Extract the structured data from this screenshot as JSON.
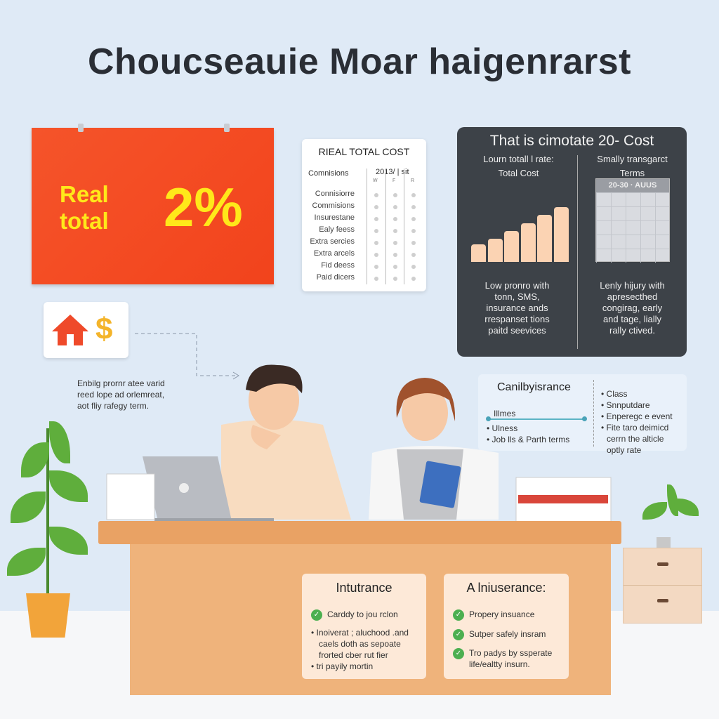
{
  "title": "Choucseauie Moar haigenrarst",
  "banner": {
    "label_line1": "Real",
    "label_line2": "total",
    "value": "2%",
    "color": "#f44d22"
  },
  "cost_table": {
    "title": "RIEAL TOTAL COST",
    "column_header": "Comnisions",
    "year_header": "2013/ | sit",
    "sub_headers": [
      "W",
      "F",
      "R"
    ],
    "rows": [
      "Connisiorre",
      "Commisions",
      "Insurestane",
      "Ealy feess",
      "Extra sercies",
      "Extra arcels",
      "Fid deess",
      "Paid dicers"
    ]
  },
  "dark_panel": {
    "title": "That is cimotate 20- Cost",
    "left": {
      "heading": "Lourn totall l rate:",
      "subheading": "Total Cost",
      "bars": [
        25,
        33,
        44,
        55,
        67,
        78
      ],
      "description": [
        "Low pronro with",
        "tonn, SMS,",
        "insurance ands",
        "rrespanset tions",
        "paitd seevices"
      ]
    },
    "right": {
      "heading": "Smally transgarct",
      "subheading": "Terms",
      "calendar_header": "20-30 · AUUS",
      "description": [
        "Lenly hijury with",
        "apresecthed",
        "congirag, early",
        "and tage, lially",
        "rally ctived."
      ]
    }
  },
  "icon_card": {
    "icons": [
      "house-icon",
      "dollar-icon"
    ],
    "dollar": "$"
  },
  "note": [
    "Enbilg prornr atee varid",
    "reed lope ad orlemreat,",
    "aot fliy rafegy term."
  ],
  "info_card": {
    "title": "Canilbyisrance",
    "timeline_label": "Illmes",
    "left_items": [
      "Ulness",
      "Job lls & Parth terms"
    ],
    "right_items": [
      "Class",
      "Snnputdare",
      "Enperegc e event",
      "Fite taro deimicd",
      "cerrn the alticle",
      "optly rate"
    ]
  },
  "cards": [
    {
      "title": "Intutrance",
      "check_items": [
        "Carddy to jou rclon"
      ],
      "bullets": [
        "Inoiverat ; aluchood .and",
        "caels doth as sepoate",
        "frorted cber rut fier",
        "tri payily mortin"
      ]
    },
    {
      "title": "A lniuserance:",
      "check_items": [
        "Propery insuance",
        "Sutper safely insram",
        "Tro padys by ssperate",
        "life/ealtty insurn."
      ]
    }
  ],
  "colors": {
    "background": "#dfeaf6",
    "dark_panel": "#3d4248",
    "desk": "#e9a264",
    "check": "#4caf50",
    "highlight": "#ffe81a"
  }
}
